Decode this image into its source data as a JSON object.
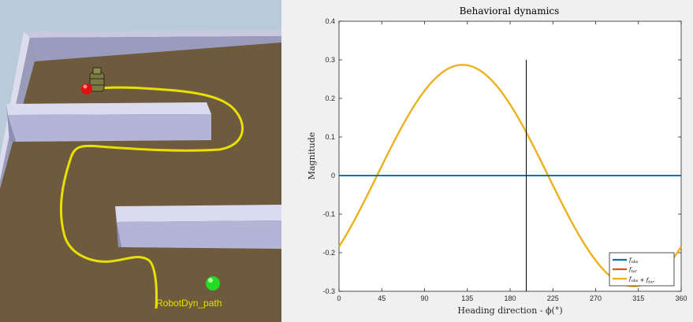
{
  "simulation": {
    "path_label": "RobotDyn_path",
    "colors": {
      "sky": "#b8cbd8",
      "floor": "#6e5a3c",
      "wall": "#b3b4d6",
      "path": "#e8e000",
      "target_ball": "#e01010",
      "goal_ball": "#22dd22"
    }
  },
  "plot": {
    "title": "Behavioral dynamics",
    "xlabel": "Heading direction - ϕ(°)",
    "ylabel": "Magnitude",
    "legend": [
      {
        "label": "f_obs",
        "color": "#0072bd"
      },
      {
        "label": "f_tar",
        "color": "#d95319"
      },
      {
        "label": "f_obs + f_tar",
        "color": "#edb120"
      }
    ]
  },
  "chart_data": {
    "type": "line",
    "title": "Behavioral dynamics",
    "xlabel": "Heading direction - ϕ(°)",
    "ylabel": "Magnitude",
    "xlim": [
      0,
      360
    ],
    "ylim": [
      -0.3,
      0.4
    ],
    "xticks": [
      0,
      45,
      90,
      135,
      180,
      225,
      270,
      315,
      360
    ],
    "yticks": [
      -0.3,
      -0.2,
      -0.1,
      0,
      0.1,
      0.2,
      0.3,
      0.4
    ],
    "legend_position": "bottom-right",
    "series": [
      {
        "name": "f_obs",
        "color": "#0072bd",
        "x": [
          0,
          360
        ],
        "y": [
          0,
          0
        ]
      },
      {
        "name": "f_tar",
        "color": "#d95319",
        "x": [],
        "y": []
      },
      {
        "name": "f_obs + f_tar",
        "color": "#edb120",
        "amplitude": 0.287,
        "peak_x": 130,
        "x": [
          0,
          20,
          40,
          60,
          80,
          100,
          120,
          130,
          140,
          160,
          180,
          200,
          220,
          240,
          260,
          280,
          300,
          310,
          320,
          340,
          360
        ],
        "y": [
          -0.184,
          -0.087,
          0.0,
          0.098,
          0.184,
          0.249,
          0.283,
          0.287,
          0.283,
          0.249,
          0.184,
          0.098,
          0.0,
          -0.098,
          -0.184,
          -0.249,
          -0.283,
          -0.287,
          -0.283,
          -0.249,
          -0.184
        ]
      }
    ],
    "vertical_marker": {
      "x": 197,
      "y_range": [
        -0.3,
        0.3
      ],
      "color": "#000000"
    }
  }
}
